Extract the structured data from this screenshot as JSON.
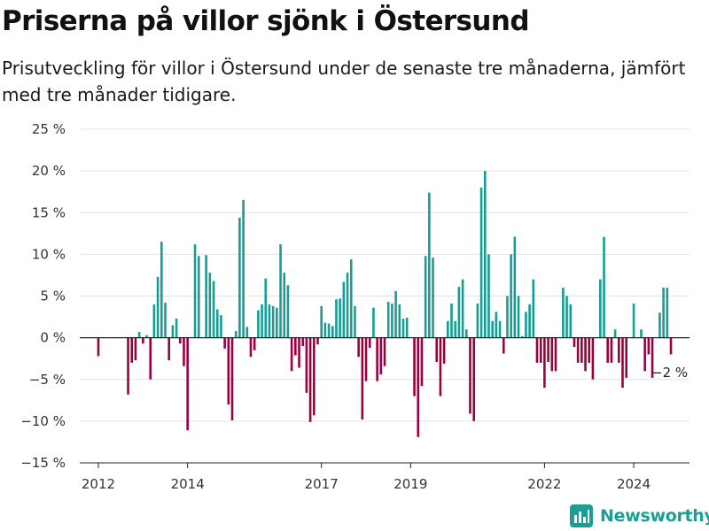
{
  "title": "Priserna på villor sjönk i Östersund",
  "subtitle": "Prisutveckling för villor i Östersund under de senaste tre månaderna, jämfört med tre månader tidigare.",
  "brand": "Newsworthy",
  "colors": {
    "positive": "#159e93",
    "negative": "#9b0041",
    "grid": "#e3e3e3",
    "axis": "#222222",
    "text": "#333333",
    "brand": "#1a9e95"
  },
  "chart_data": {
    "type": "bar",
    "x": [
      "2012-01",
      "2012-02",
      "2012-03",
      "2012-04",
      "2012-05",
      "2012-06",
      "2012-07",
      "2012-08",
      "2012-09",
      "2012-10",
      "2012-11",
      "2012-12",
      "2013-01",
      "2013-02",
      "2013-03",
      "2013-04",
      "2013-05",
      "2013-06",
      "2013-07",
      "2013-08",
      "2013-09",
      "2013-10",
      "2013-11",
      "2013-12",
      "2014-01",
      "2014-02",
      "2014-03",
      "2014-04",
      "2014-05",
      "2014-06",
      "2014-07",
      "2014-08",
      "2014-09",
      "2014-10",
      "2014-11",
      "2014-12",
      "2015-01",
      "2015-02",
      "2015-03",
      "2015-04",
      "2015-05",
      "2015-06",
      "2015-07",
      "2015-08",
      "2015-09",
      "2015-10",
      "2015-11",
      "2015-12",
      "2016-01",
      "2016-02",
      "2016-03",
      "2016-04",
      "2016-05",
      "2016-06",
      "2016-07",
      "2016-08",
      "2016-09",
      "2016-10",
      "2016-11",
      "2016-12",
      "2017-01",
      "2017-02",
      "2017-03",
      "2017-04",
      "2017-05",
      "2017-06",
      "2017-07",
      "2017-08",
      "2017-09",
      "2017-10",
      "2017-11",
      "2017-12",
      "2018-01",
      "2018-02",
      "2018-03",
      "2018-04",
      "2018-05",
      "2018-06",
      "2018-07",
      "2018-08",
      "2018-09",
      "2018-10",
      "2018-11",
      "2018-12",
      "2019-01",
      "2019-02",
      "2019-03",
      "2019-04",
      "2019-05",
      "2019-06",
      "2019-07",
      "2019-08",
      "2019-09",
      "2019-10",
      "2019-11",
      "2019-12",
      "2020-01",
      "2020-02",
      "2020-03",
      "2020-04",
      "2020-05",
      "2020-06",
      "2020-07",
      "2020-08",
      "2020-09",
      "2020-10",
      "2020-11",
      "2020-12",
      "2021-01",
      "2021-02",
      "2021-03",
      "2021-04",
      "2021-05",
      "2021-06",
      "2021-07",
      "2021-08",
      "2021-09",
      "2021-10",
      "2021-11",
      "2021-12",
      "2022-01",
      "2022-02",
      "2022-03",
      "2022-04",
      "2022-05",
      "2022-06",
      "2022-07",
      "2022-08",
      "2022-09",
      "2022-10",
      "2022-11",
      "2022-12",
      "2023-01",
      "2023-02",
      "2023-03",
      "2023-04",
      "2023-05",
      "2023-06",
      "2023-07",
      "2023-08",
      "2023-09",
      "2023-10",
      "2023-11",
      "2023-12",
      "2024-01",
      "2024-02",
      "2024-03",
      "2024-04",
      "2024-05",
      "2024-06",
      "2024-07",
      "2024-08",
      "2024-09",
      "2024-10",
      "2024-11",
      "2024-12",
      "2025-01"
    ],
    "values": [
      -2.2,
      null,
      null,
      null,
      null,
      null,
      null,
      null,
      -6.8,
      -3.0,
      -2.7,
      0.7,
      -0.7,
      0.3,
      -5.0,
      4.0,
      7.3,
      11.5,
      4.2,
      -2.7,
      1.5,
      2.3,
      -0.7,
      -3.4,
      -11.1,
      null,
      11.2,
      9.8,
      null,
      9.9,
      7.8,
      6.8,
      3.4,
      2.7,
      -1.3,
      -8.0,
      -9.9,
      0.8,
      14.4,
      16.5,
      1.3,
      -2.3,
      -1.5,
      3.3,
      4.0,
      7.1,
      4.0,
      3.8,
      3.6,
      11.2,
      7.8,
      6.3,
      -4.0,
      -2.1,
      -3.6,
      -1.0,
      -6.6,
      -10.1,
      -9.3,
      -0.8,
      3.8,
      1.8,
      1.7,
      1.4,
      4.6,
      4.7,
      6.7,
      7.8,
      9.4,
      3.8,
      -2.3,
      -9.8,
      -5.2,
      -1.2,
      3.6,
      -5.2,
      -4.4,
      -3.4,
      4.3,
      4.1,
      5.6,
      4.0,
      2.3,
      2.4,
      null,
      -7.0,
      -11.9,
      -5.8,
      9.8,
      17.4,
      9.6,
      -2.9,
      -7.0,
      -3.1,
      2.0,
      4.1,
      2.0,
      6.1,
      7.0,
      1.0,
      -9.1,
      -10.0,
      4.1,
      18.0,
      20.0,
      10.0,
      2.0,
      3.1,
      2.0,
      -1.9,
      5.0,
      10.0,
      12.1,
      5.0,
      0.2,
      3.1,
      4.0,
      7.0,
      -3.0,
      -3.0,
      -6.0,
      -2.9,
      -4.0,
      -4.0,
      null,
      6.0,
      5.0,
      4.0,
      -1.1,
      -3.0,
      -3.0,
      -4.0,
      -3.0,
      -5.0,
      null,
      7.0,
      12.1,
      -3.0,
      -3.0,
      1.0,
      -3.0,
      -6.0,
      -4.8,
      null,
      4.1,
      null,
      1.0,
      -4.0,
      -2.0,
      -4.8,
      null,
      3.0,
      6.0,
      6.0,
      -2.0,
      null,
      null
    ],
    "x_ticks": [
      "2012",
      "2014",
      "2017",
      "2019",
      "2022",
      "2024"
    ],
    "x_tick_positions": [
      "2012-01",
      "2014-01",
      "2017-01",
      "2019-01",
      "2022-01",
      "2024-01"
    ],
    "y_ticks": [
      25,
      20,
      15,
      10,
      5,
      0,
      -5,
      -10,
      -15
    ],
    "y_tick_labels": [
      "25 %",
      "20 %",
      "15 %",
      "10 %",
      "5 %",
      "0 %",
      "−5 %",
      "−10 %",
      "−15 %"
    ],
    "ylim": [
      -15,
      25
    ],
    "x_range": [
      "2011-08",
      "2025-04"
    ],
    "grid": "horizontal",
    "legend": "none",
    "last_value_label": "−2 %",
    "title": "",
    "xlabel": "",
    "ylabel": ""
  }
}
